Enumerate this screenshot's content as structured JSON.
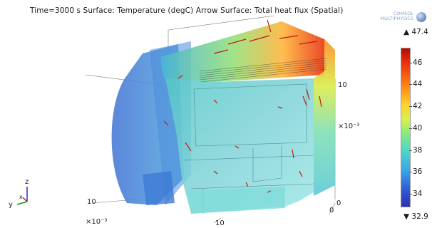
{
  "title": "Time=3000 s   Surface: Temperature (degC)  Arrow Surface: Total heat flux (Spatial)",
  "logo": {
    "line1": "COMSOL",
    "line2": "MULTIPHYSICS"
  },
  "colorbar": {
    "max_label": "▲ 47.4",
    "min_label": "▼ 32.9",
    "ticks": [
      "46",
      "44",
      "42",
      "40",
      "38",
      "36",
      "34"
    ],
    "colors": [
      "#b40b00",
      "#ff7a10",
      "#ffd02c",
      "#7fe88a",
      "#38a6e8",
      "#2b2fb8"
    ]
  },
  "axes": {
    "scale_right": "×10⁻³",
    "scale_left": "×10⁻³",
    "tick_10_right": "10",
    "tick_0_right": "0",
    "tick_10_left": "10",
    "tick_10_bottom": "10",
    "tick_0_bottom": "0"
  },
  "triad": {
    "z": "z",
    "y": "y",
    "x": "x"
  }
}
